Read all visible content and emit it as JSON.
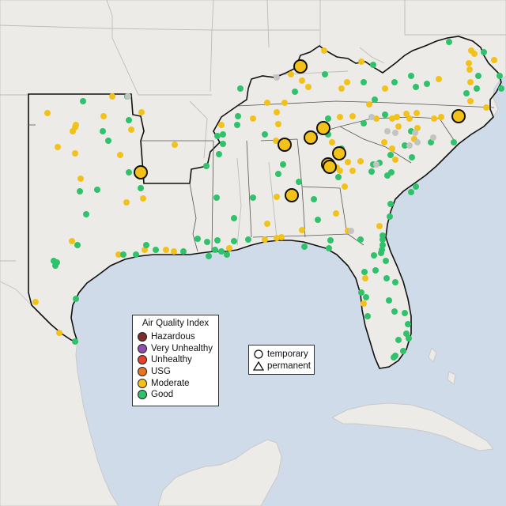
{
  "legend": {
    "title": "Air Quality Index",
    "categories": [
      {
        "label": "Hazardous",
        "color": "#7e2d2d"
      },
      {
        "label": "Very Unhealthy",
        "color": "#8f4fb0"
      },
      {
        "label": "Unhealthy",
        "color": "#e2412d"
      },
      {
        "label": "USG",
        "color": "#e8761f"
      },
      {
        "label": "Moderate",
        "color": "#f2c21b"
      },
      {
        "label": "Good",
        "color": "#2fc26a"
      }
    ]
  },
  "shape_legend": {
    "temporary_label": "temporary",
    "permanent_label": "permanent",
    "temporary_icon": "circle-icon",
    "permanent_icon": "triangle-icon"
  },
  "colors": {
    "ocean": "#cfdbe8",
    "land": "#ecebe7",
    "no_data": "#c3c3c3"
  }
}
